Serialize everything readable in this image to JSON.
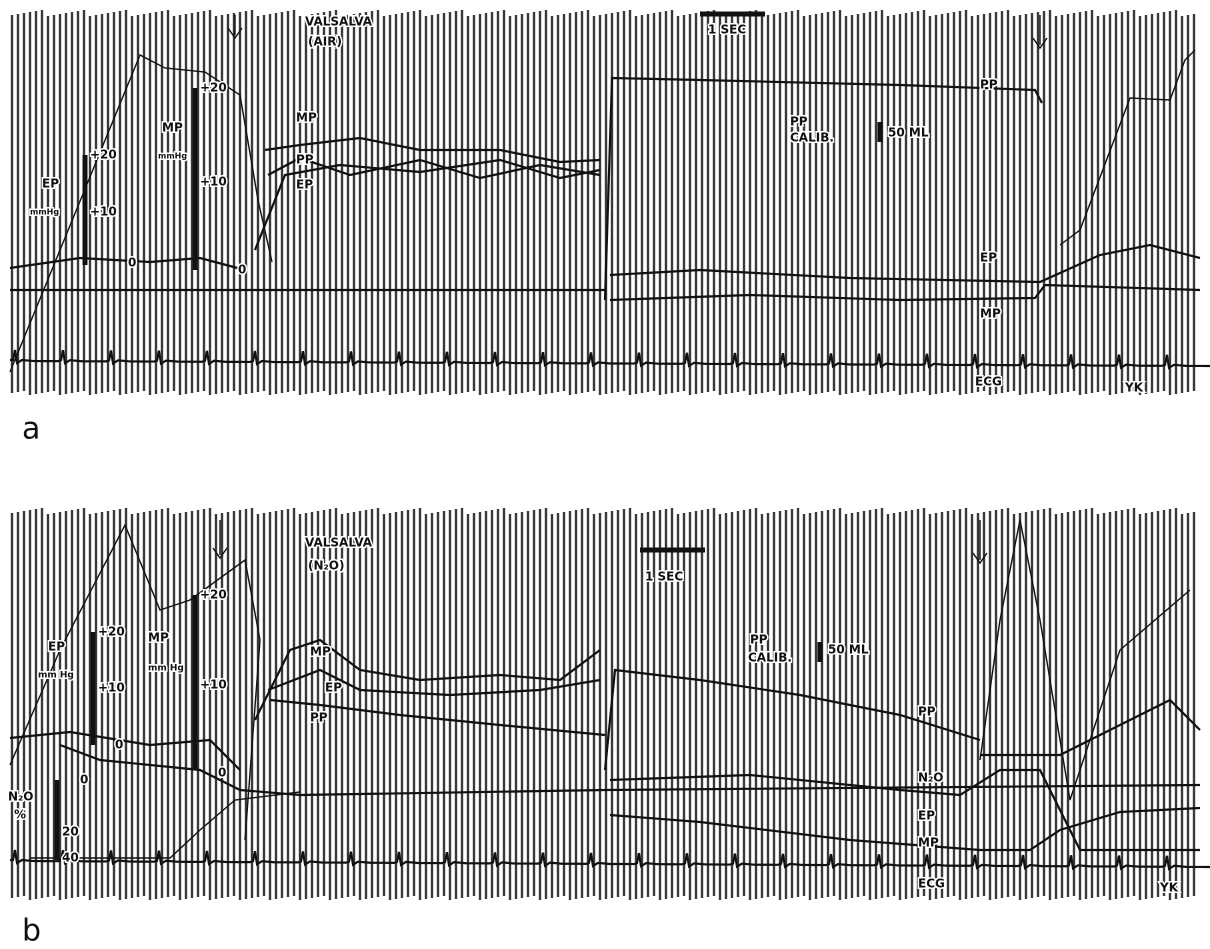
{
  "panels": [
    {
      "label": "a",
      "title": "VALSALVA",
      "subtitle": "(AIR)",
      "time_scale": "1 SEC",
      "calibration": {
        "name": "PP",
        "label": "CALIB.",
        "value": "50 ML"
      },
      "axes": [
        {
          "name": "EP",
          "unit": "mmHg",
          "ticks": [
            "+20",
            "+10",
            "0"
          ]
        },
        {
          "name": "MP",
          "unit": "mmHg",
          "ticks": [
            "+20",
            "+10",
            "0"
          ]
        }
      ],
      "trace_labels": [
        "MP",
        "PP",
        "EP",
        "PP",
        "EP",
        "MP",
        "ECG"
      ],
      "initials": "YK"
    },
    {
      "label": "b",
      "title": "VALSALVA",
      "subtitle": "(N₂O)",
      "time_scale": "1 SEC",
      "calibration": {
        "name": "PP",
        "label": "CALIB.",
        "value": "50 ML"
      },
      "axes": [
        {
          "name": "EP",
          "unit": "mm Hg",
          "ticks": [
            "+20",
            "+10",
            "0"
          ]
        },
        {
          "name": "MP",
          "unit": "mm Hg",
          "ticks": [
            "+20",
            "+10",
            "0"
          ]
        },
        {
          "name": "N₂O",
          "unit": "%",
          "ticks": [
            "0",
            "20",
            "40"
          ]
        }
      ],
      "trace_labels": [
        "MP",
        "EP",
        "PP",
        "PP",
        "N₂O",
        "EP",
        "MP",
        "ECG"
      ],
      "initials": "YK"
    }
  ]
}
